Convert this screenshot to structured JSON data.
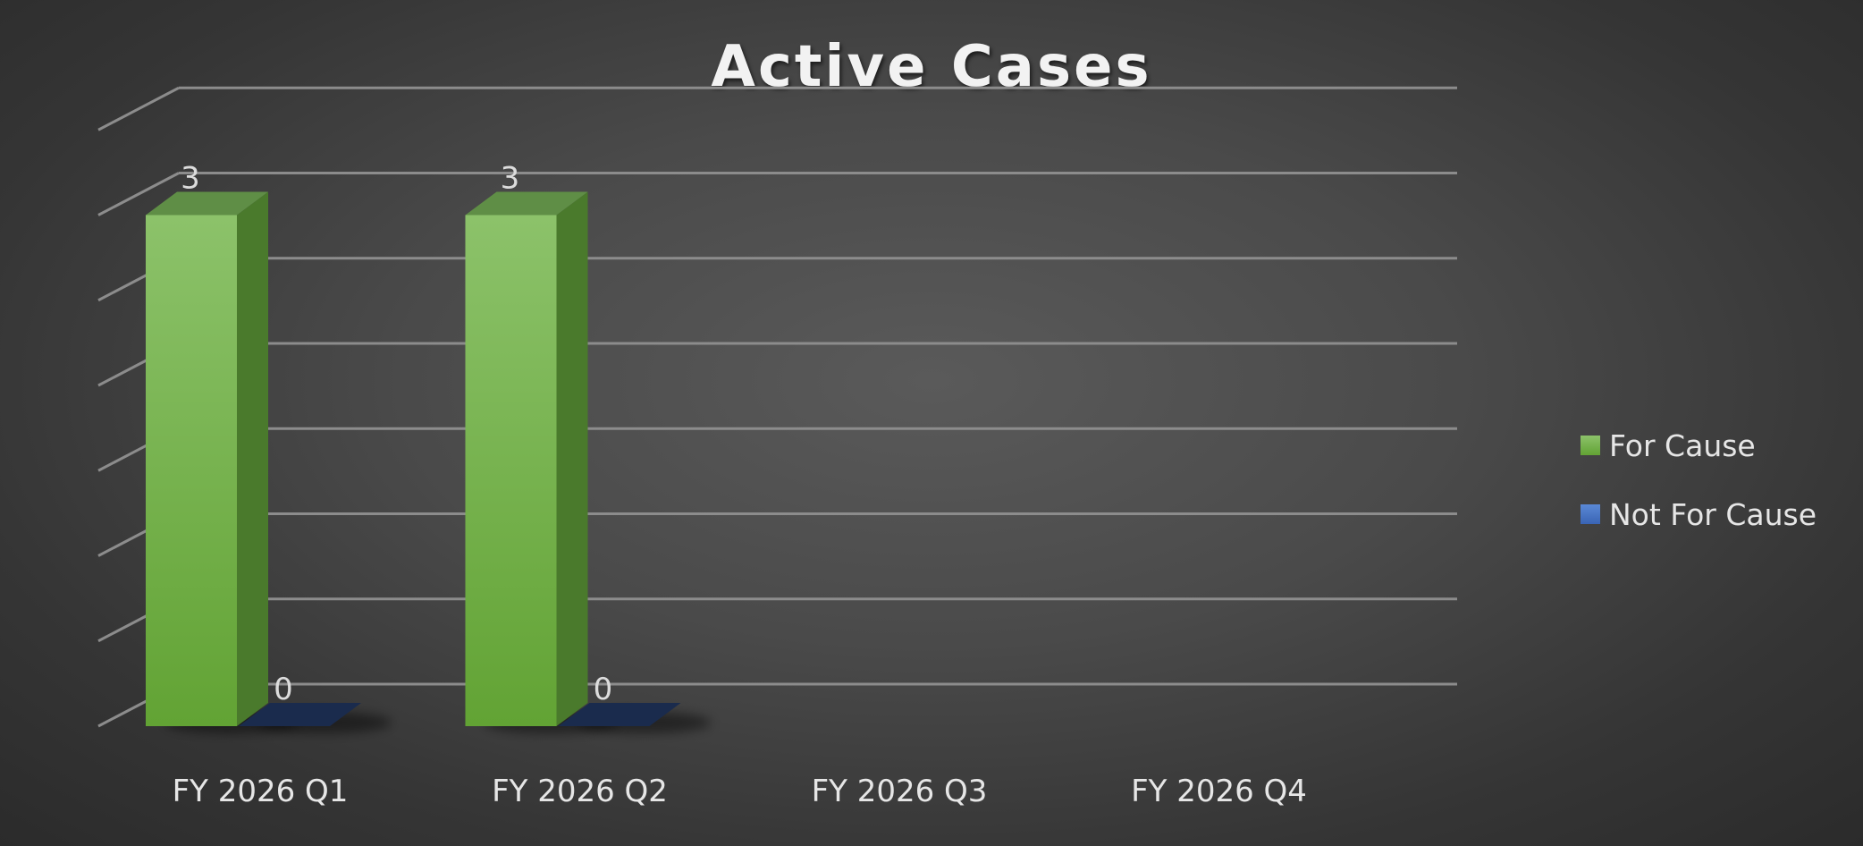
{
  "chart_data": {
    "type": "bar",
    "title": "Active Cases",
    "categories": [
      "FY 2026 Q1",
      "FY 2026 Q2",
      "FY 2026 Q3",
      "FY 2026 Q4"
    ],
    "series": [
      {
        "name": "For Cause",
        "values": [
          3,
          3,
          null,
          null
        ],
        "color": "#70ad47"
      },
      {
        "name": "Not For Cause",
        "values": [
          0,
          0,
          null,
          null
        ],
        "color": "#4472c4"
      }
    ],
    "xlabel": "",
    "ylabel": "",
    "ylim": [
      0,
      3.5
    ],
    "grid": true,
    "legend_position": "right",
    "style": "3d-clustered-column"
  }
}
